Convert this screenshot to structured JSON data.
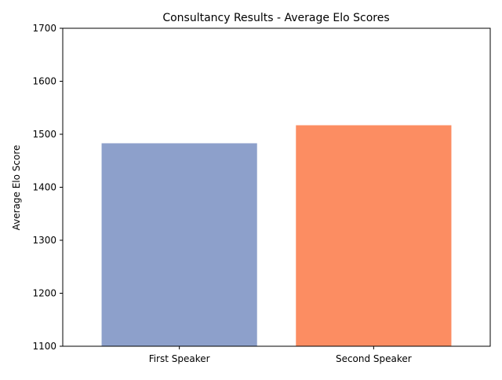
{
  "chart_data": {
    "type": "bar",
    "title": "Consultancy Results - Average Elo Scores",
    "xlabel": "",
    "ylabel": "Average Elo Score",
    "categories": [
      "First Speaker",
      "Second Speaker"
    ],
    "values": [
      1483,
      1517
    ],
    "bar_colors": [
      "#8da0cb",
      "#fc8d62"
    ],
    "ylim": [
      1100,
      1700
    ],
    "yticks": [
      1100,
      1200,
      1300,
      1400,
      1500,
      1600,
      1700
    ],
    "grid": false,
    "legend": "none"
  }
}
